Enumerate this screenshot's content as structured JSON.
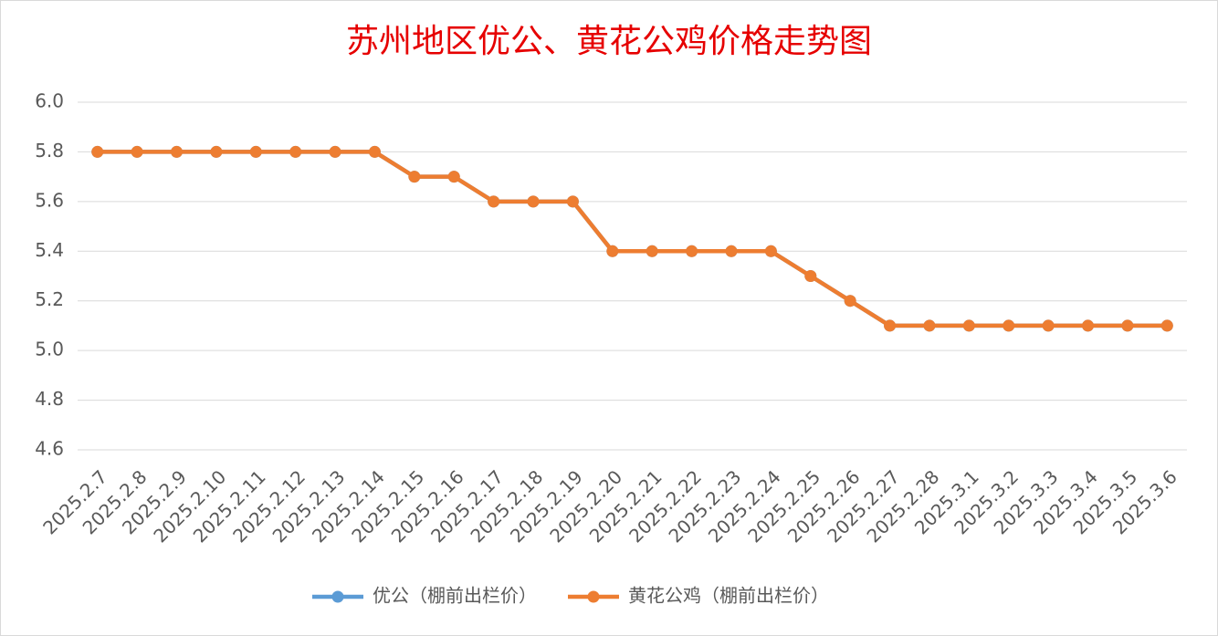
{
  "chart_data": {
    "type": "line",
    "title": "苏州地区优公、黄花公鸡价格走势图",
    "categories": [
      "2025.2.7",
      "2025.2.8",
      "2025.2.9",
      "2025.2.10",
      "2025.2.11",
      "2025.2.12",
      "2025.2.13",
      "2025.2.14",
      "2025.2.15",
      "2025.2.16",
      "2025.2.17",
      "2025.2.18",
      "2025.2.19",
      "2025.2.20",
      "2025.2.21",
      "2025.2.22",
      "2025.2.23",
      "2025.2.24",
      "2025.2.25",
      "2025.2.26",
      "2025.2.27",
      "2025.2.28",
      "2025.3.1",
      "2025.3.2",
      "2025.3.3",
      "2025.3.4",
      "2025.3.5",
      "2025.3.6"
    ],
    "series": [
      {
        "name": "优公（棚前出栏价）",
        "color": "#5b9bd5",
        "values": [
          5.8,
          5.8,
          5.8,
          5.8,
          5.8,
          5.8,
          5.8,
          5.8,
          5.7,
          5.7,
          5.6,
          5.6,
          5.6,
          5.4,
          5.4,
          5.4,
          5.4,
          5.4,
          5.3,
          5.2,
          5.1,
          5.1,
          5.1,
          5.1,
          5.1,
          5.1,
          5.1,
          5.1
        ]
      },
      {
        "name": "黄花公鸡（棚前出栏价）",
        "color": "#ed7d31",
        "values": [
          5.8,
          5.8,
          5.8,
          5.8,
          5.8,
          5.8,
          5.8,
          5.8,
          5.7,
          5.7,
          5.6,
          5.6,
          5.6,
          5.4,
          5.4,
          5.4,
          5.4,
          5.4,
          5.3,
          5.2,
          5.1,
          5.1,
          5.1,
          5.1,
          5.1,
          5.1,
          5.1,
          5.1
        ]
      }
    ],
    "ylim": [
      4.6,
      6.0
    ],
    "yticks": [
      {
        "value": 4.6,
        "label": "4.6"
      },
      5.2,
      5.4,
      5.6,
      5.8,
      {
        "value": 5.0,
        "label": "5.0"
      },
      4.8,
      {
        "value": 6.0,
        "label": "6.0"
      }
    ],
    "grid": true,
    "legend": "bottom"
  }
}
